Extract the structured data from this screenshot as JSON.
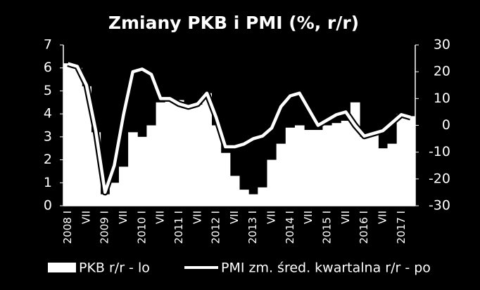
{
  "chart_data": {
    "type": "combo",
    "title": "Zmiany PKB i PMI (%, r/r)",
    "categories": [
      "2008 I",
      null,
      "VII",
      null,
      "2009 I",
      null,
      "VII",
      null,
      "2010 I",
      null,
      "VII",
      null,
      "2011 I",
      null,
      "VII",
      null,
      "2012 I",
      null,
      "VII",
      null,
      "2013 I",
      null,
      "VII",
      null,
      "2014 I",
      null,
      "VII",
      null,
      "2015 I",
      null,
      "VII",
      null,
      "2016 I",
      null,
      "VII",
      null,
      "2017 I",
      null
    ],
    "series": [
      {
        "name": "PKB r/r - lo",
        "type": "area",
        "color": "#ffffff",
        "values": [
          6.2,
          6.0,
          5.2,
          3.2,
          0.5,
          1.0,
          1.7,
          3.2,
          3.0,
          3.5,
          4.5,
          4.6,
          4.6,
          4.4,
          4.4,
          4.9,
          3.5,
          2.3,
          1.3,
          0.7,
          0.5,
          0.8,
          2.0,
          2.7,
          3.4,
          3.5,
          3.3,
          3.3,
          3.5,
          3.6,
          3.7,
          4.5,
          3.0,
          3.1,
          2.5,
          2.7,
          4.0,
          3.9
        ]
      },
      {
        "name": "PMI zm. śred. kwartalna r/r - po",
        "type": "line",
        "axis": "y2",
        "color": "#ffffff",
        "values": [
          23,
          22,
          15,
          -2,
          -25,
          -15,
          4,
          20,
          21,
          19,
          10,
          10,
          8,
          7,
          8,
          12,
          3,
          -8,
          -8,
          -7,
          -5,
          -4,
          -1,
          7,
          11,
          12,
          6,
          0,
          2,
          4,
          5,
          0,
          -4,
          -3,
          -2,
          1,
          4,
          3
        ]
      }
    ],
    "ylim": [
      0,
      7
    ],
    "yticks": [
      0,
      1,
      2,
      3,
      4,
      5,
      6,
      7
    ],
    "y2lim": [
      -30,
      30
    ],
    "y2ticks": [
      -30,
      -20,
      -10,
      0,
      10,
      20,
      30
    ],
    "legend": "bottom"
  }
}
